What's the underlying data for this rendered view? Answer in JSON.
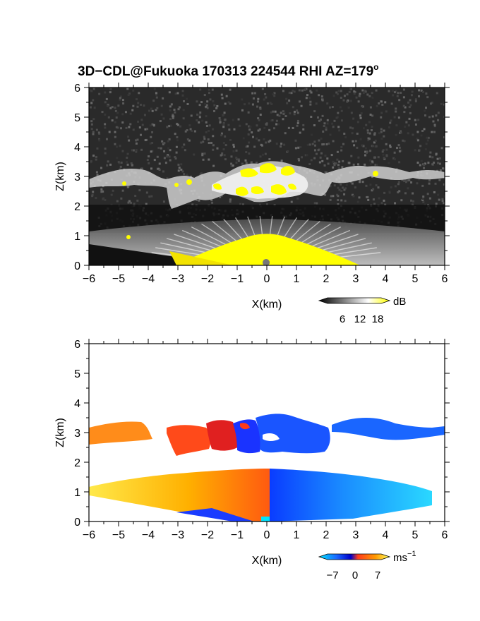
{
  "title": "3D−CDL@Fukuoka 170313 224544 RHI AZ=179",
  "title_degree": "o",
  "chart_data": [
    {
      "type": "heatmap",
      "name": "reflectivity",
      "xlabel": "X(km)",
      "ylabel": "Z(km)",
      "xlim": [
        -6,
        6
      ],
      "ylim": [
        0,
        6
      ],
      "xticks": [
        "−6",
        "−5",
        "−4",
        "−3",
        "−2",
        "−1",
        "0",
        "1",
        "2",
        "3",
        "4",
        "5",
        "6"
      ],
      "yticks": [
        "0",
        "1",
        "2",
        "3",
        "4",
        "5",
        "6"
      ],
      "colorbar": {
        "unit": "dB",
        "ticks": [
          "6",
          "12",
          "18"
        ],
        "colors": [
          "#000000",
          "#ffffff",
          "#ffff00"
        ]
      },
      "background_color": "#2a2a2a",
      "features": {
        "cloud_layer_km": [
          2.3,
          3.3
        ],
        "boundary_layer_top_km": 1.2,
        "strong_echo_color": "#ffff00"
      }
    },
    {
      "type": "heatmap",
      "name": "velocity",
      "xlabel": "X(km)",
      "ylabel": "Z(km)",
      "xlim": [
        -6,
        6
      ],
      "ylim": [
        0,
        6
      ],
      "xticks": [
        "−6",
        "−5",
        "−4",
        "−3",
        "−2",
        "−1",
        "0",
        "1",
        "2",
        "3",
        "4",
        "5",
        "6"
      ],
      "yticks": [
        "0",
        "1",
        "2",
        "3",
        "4",
        "5",
        "6"
      ],
      "colorbar": {
        "unit": "ms",
        "unit_exp": "−1",
        "ticks": [
          "−7",
          "0",
          "7"
        ],
        "colors": [
          "#00e5ff",
          "#1a66ff",
          "#0000c8",
          "#ff3a1a",
          "#ff9a00",
          "#ffff60"
        ]
      },
      "background_color": "#ffffff",
      "features": {
        "cloud_layer_km": [
          2.3,
          3.6
        ],
        "boundary_layer_top_km": 1.7
      }
    }
  ]
}
